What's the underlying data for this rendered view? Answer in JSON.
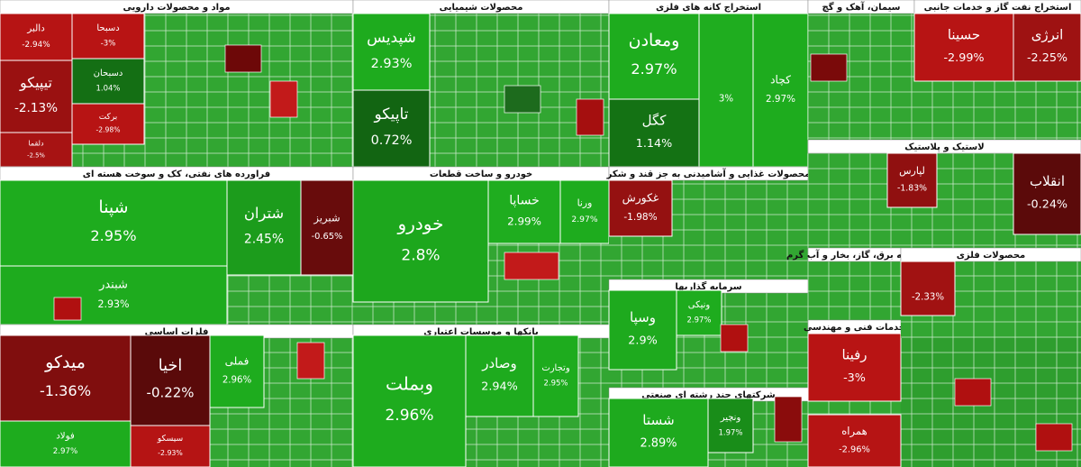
{
  "chart_data": {
    "type": "treemap",
    "sectors": [
      {
        "name": "مواد و محصولات دارویی",
        "labels": [
          "دالبر",
          "تیپیکو",
          "دلقما",
          "دسبحا",
          "دسبحان",
          "برکت"
        ],
        "values": [
          -2.94,
          -2.13,
          -2.5,
          -3,
          1.04,
          -2.98
        ],
        "value_labels": [
          "-2.94%",
          "-2.13%",
          "-2.5%",
          "-3%",
          "1.04%",
          "-2.98%"
        ]
      },
      {
        "name": "محصولات شیمیایی",
        "labels": [
          "شپدیس",
          "تاپیکو"
        ],
        "values": [
          2.93,
          0.72
        ],
        "value_labels": [
          "2.93%",
          "0.72%"
        ]
      },
      {
        "name": "استخراج کانه های فلزی",
        "labels": [
          "ومعادن",
          "کگل",
          null,
          "کچاد"
        ],
        "values": [
          2.97,
          1.14,
          3,
          2.97
        ],
        "value_labels": [
          "2.97%",
          "1.14%",
          "3%",
          "2.97%"
        ]
      },
      {
        "name": "سیمان، آهک و گچ",
        "labels": [],
        "values": [],
        "value_labels": []
      },
      {
        "name": "استخراج نفت گاز و خدمات جانبی",
        "labels": [
          "حسینا",
          "انرژی"
        ],
        "values": [
          -2.99,
          -2.25
        ],
        "value_labels": [
          "-2.99%",
          "-2.25%"
        ]
      },
      {
        "name": "فراورده های نفتی، کک و سوخت هسته ای",
        "labels": [
          "شپنا",
          "شبندر",
          "شتران",
          "شبریز"
        ],
        "values": [
          2.95,
          2.93,
          2.45,
          -0.65
        ],
        "value_labels": [
          "2.95%",
          "2.93%",
          "2.45%",
          "-0.65%"
        ]
      },
      {
        "name": "خودرو و ساخت قطعات",
        "labels": [
          "خودرو",
          "خساپا",
          "ورنا"
        ],
        "values": [
          2.8,
          2.99,
          2.97
        ],
        "value_labels": [
          "2.8%",
          "2.99%",
          "2.97%"
        ]
      },
      {
        "name": "محصولات غذایی و آشامیدنی به جز قند و شکر",
        "labels": [
          "غکورش"
        ],
        "values": [
          -1.98
        ],
        "value_labels": [
          "-1.98%"
        ]
      },
      {
        "name": "لاستیک و پلاستیک",
        "labels": [
          "لپارس",
          "انقلاب"
        ],
        "values": [
          -1.83,
          -0.24
        ],
        "value_labels": [
          "-1.83%",
          "-0.24%"
        ]
      },
      {
        "name": "فلزات اساسی",
        "labels": [
          "میدکو",
          "فولاد",
          "اخیا",
          "فملی",
          "سیسکو"
        ],
        "values": [
          -1.36,
          2.97,
          -0.22,
          2.96,
          -2.93
        ],
        "value_labels": [
          "-1.36%",
          "2.97%",
          "-0.22%",
          "2.96%",
          "-2.93%"
        ]
      },
      {
        "name": "بانکها و موسسات اعتباری",
        "labels": [
          "وبملت",
          "وصادر",
          "وتجارت"
        ],
        "values": [
          2.96,
          2.94,
          2.95
        ],
        "value_labels": [
          "2.96%",
          "2.94%",
          "2.95%"
        ]
      },
      {
        "name": "سرمایه گذاریها",
        "labels": [
          "وسپا",
          "ونیکی"
        ],
        "values": [
          2.9,
          2.97
        ],
        "value_labels": [
          "2.9%",
          "2.97%"
        ]
      },
      {
        "name": "شرکتهای چند رشته ای صنعتی",
        "labels": [
          "شستا",
          "ونچیر"
        ],
        "values": [
          2.89,
          1.97
        ],
        "value_labels": [
          "2.89%",
          "1.97%"
        ]
      },
      {
        "name": "عرضه برق، گاز، بخار و آب گرم",
        "labels": [],
        "values": [],
        "value_labels": []
      },
      {
        "name": "خدمات فنی و مهندسی",
        "labels": [
          "رفینا",
          "همراه"
        ],
        "values": [
          -3,
          -2.96
        ],
        "value_labels": [
          "-3%",
          "-2.96%"
        ]
      },
      {
        "name": "محصولات فلزی",
        "labels": [
          null
        ],
        "values": [
          -2.33
        ],
        "value_labels": [
          "-2.33%"
        ]
      }
    ]
  }
}
